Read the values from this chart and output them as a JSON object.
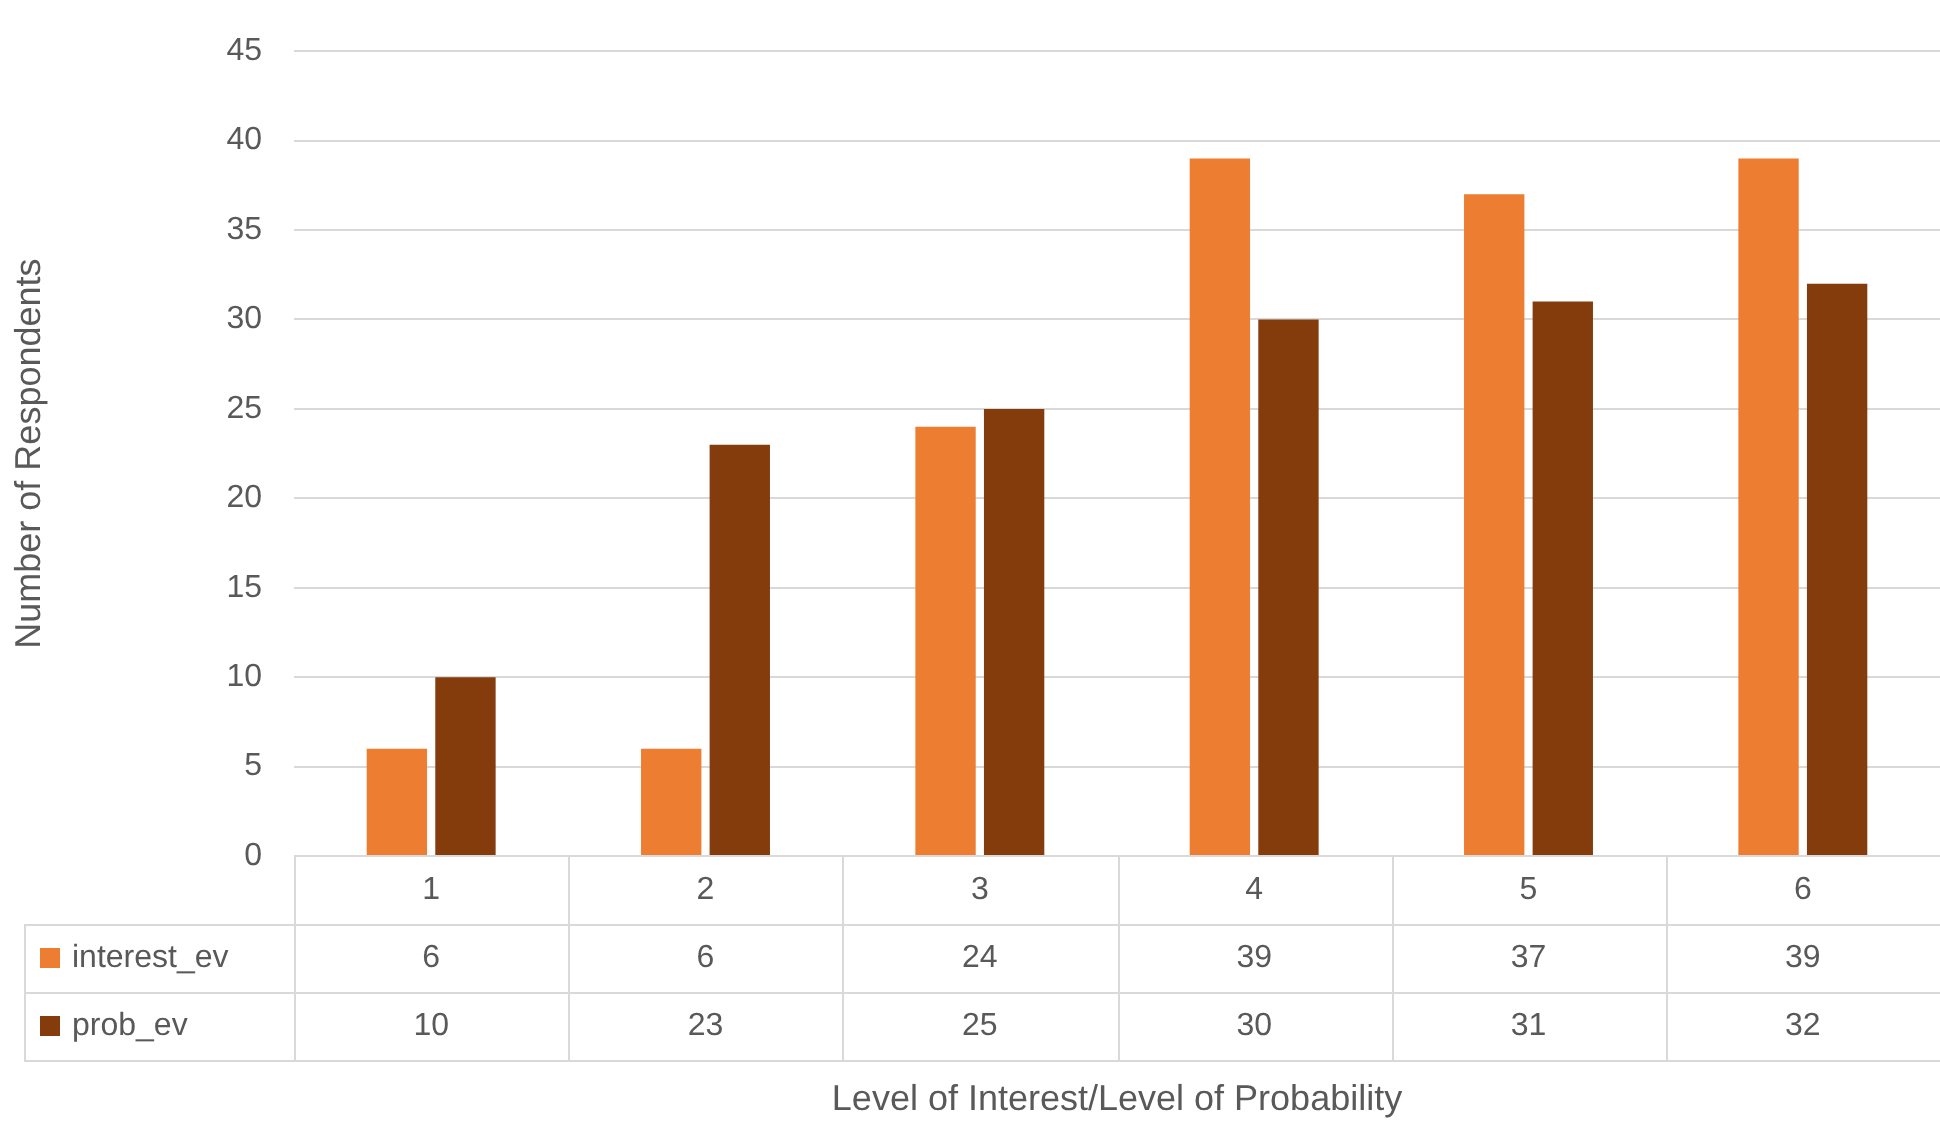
{
  "chart_data": {
    "type": "bar",
    "categories": [
      "1",
      "2",
      "3",
      "4",
      "5",
      "6"
    ],
    "series": [
      {
        "name": "interest_ev",
        "color": "#ed7d31",
        "values": [
          6,
          6,
          24,
          39,
          37,
          39
        ]
      },
      {
        "name": "prob_ev",
        "color": "#843c0c",
        "values": [
          10,
          23,
          25,
          30,
          31,
          32
        ]
      }
    ],
    "xlabel": "Level of Interest/Level of Probability",
    "ylabel": "Number of Respondents",
    "ylim": [
      0,
      45
    ],
    "yticks": [
      0,
      5,
      10,
      15,
      20,
      25,
      30,
      35,
      40,
      45
    ],
    "grid": "y",
    "legend": "bottom",
    "data_labels": true
  }
}
